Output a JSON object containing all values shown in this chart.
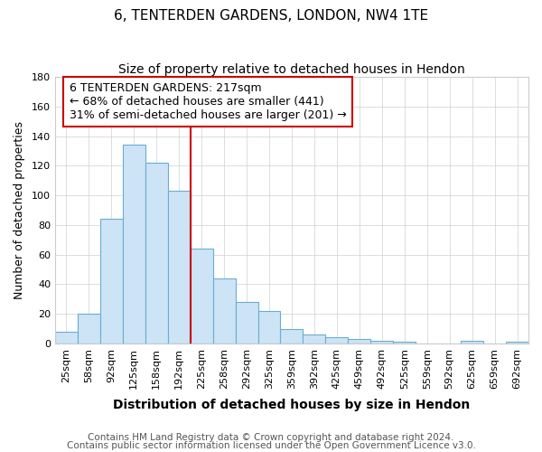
{
  "title": "6, TENTERDEN GARDENS, LONDON, NW4 1TE",
  "subtitle": "Size of property relative to detached houses in Hendon",
  "xlabel": "Distribution of detached houses by size in Hendon",
  "ylabel": "Number of detached properties",
  "bins": [
    "25sqm",
    "58sqm",
    "92sqm",
    "125sqm",
    "158sqm",
    "192sqm",
    "225sqm",
    "258sqm",
    "292sqm",
    "325sqm",
    "359sqm",
    "392sqm",
    "425sqm",
    "459sqm",
    "492sqm",
    "525sqm",
    "559sqm",
    "592sqm",
    "625sqm",
    "659sqm",
    "692sqm"
  ],
  "values": [
    8,
    20,
    84,
    134,
    122,
    103,
    64,
    44,
    28,
    22,
    10,
    6,
    4,
    3,
    2,
    1,
    0,
    0,
    2,
    0,
    1
  ],
  "bar_color": "#cce4f5",
  "bar_edge_color": "#6aadd5",
  "annotation_text": "6 TENTERDEN GARDENS: 217sqm\n← 68% of detached houses are smaller (441)\n31% of semi-detached houses are larger (201) →",
  "annotation_box_color": "#ffffff",
  "annotation_box_edge": "#cc0000",
  "vline_color": "#cc0000",
  "ylim": [
    0,
    180
  ],
  "yticks": [
    0,
    20,
    40,
    60,
    80,
    100,
    120,
    140,
    160,
    180
  ],
  "footnote1": "Contains HM Land Registry data © Crown copyright and database right 2024.",
  "footnote2": "Contains public sector information licensed under the Open Government Licence v3.0.",
  "title_fontsize": 11,
  "subtitle_fontsize": 10,
  "xlabel_fontsize": 10,
  "ylabel_fontsize": 9,
  "tick_fontsize": 8,
  "annotation_fontsize": 9,
  "footnote_fontsize": 7.5
}
